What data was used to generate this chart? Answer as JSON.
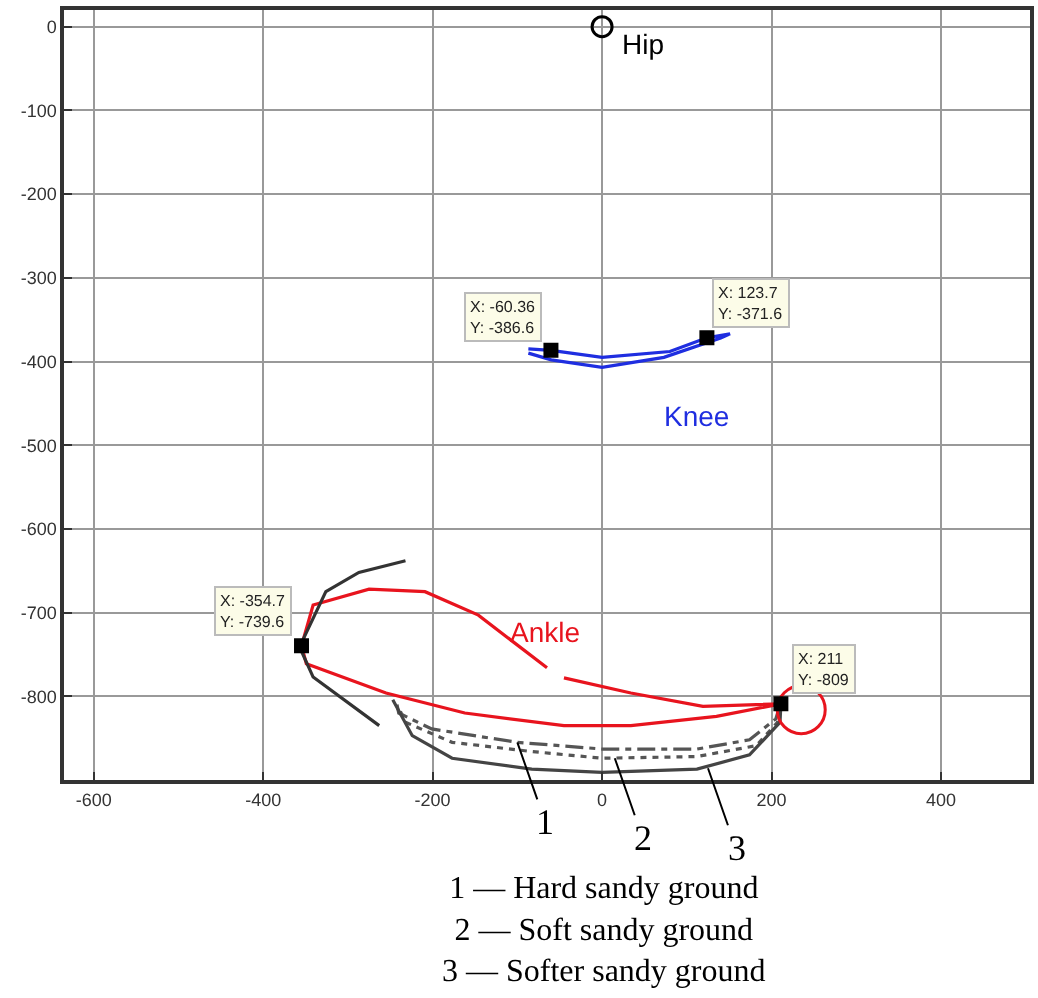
{
  "chart_data": {
    "type": "line",
    "xlim": [
      -635,
      505
    ],
    "ylim": [
      -900,
      20
    ],
    "xticks": [
      -600,
      -400,
      -200,
      0,
      200,
      400
    ],
    "yticks": [
      0,
      -100,
      -200,
      -300,
      -400,
      -500,
      -600,
      -700,
      -800
    ],
    "grid": true,
    "series": [
      {
        "type": "scatter",
        "name": "Hip",
        "color": "#000000",
        "marker": "circle",
        "x": [
          0
        ],
        "values": [
          0
        ]
      },
      {
        "name": "Knee",
        "color": "#1f2ee0",
        "line_style": "solid",
        "marker": "none",
        "x": [
          -87,
          -60.36,
          0,
          80,
          123.7,
          151,
          140,
          73,
          0,
          -60,
          -87
        ],
        "values": [
          -385,
          -386.6,
          -395,
          -388,
          -371.6,
          -367,
          -372,
          -395,
          -407,
          -398,
          -390
        ]
      },
      {
        "name": "Ankle",
        "color": "#e8141e",
        "line_style": "solid",
        "marker": "none",
        "x": [
          -45,
          34,
          119,
          211,
          135,
          34,
          -45,
          -162,
          -255,
          -349,
          -354.7,
          -341,
          -275,
          -209,
          -146,
          -65
        ],
        "values": [
          -778,
          -796,
          -812,
          -809,
          -824,
          -835,
          -835,
          -820,
          -796,
          -761,
          -739.6,
          -691,
          -672,
          -675,
          -703,
          -766
        ]
      },
      {
        "color": "#333333",
        "line_style": "solid",
        "marker": "none",
        "x": [
          -263,
          -341,
          -357,
          -326,
          -287,
          -232
        ],
        "values": [
          -835,
          -777,
          -741,
          -675,
          -652,
          -638
        ]
      },
      {
        "color": "#555555",
        "line_style": "dashdot",
        "marker": "none",
        "x": [
          -242,
          -240,
          -201,
          -100,
          0,
          112,
          174,
          205,
          209
        ],
        "values": [
          -810,
          -820,
          -839,
          -855,
          -863,
          -863,
          -852,
          -827,
          -814
        ]
      },
      {
        "color": "#555555",
        "line_style": "dotted",
        "marker": "none",
        "x": [
          -238,
          -232,
          -177,
          -83,
          0,
          112,
          182,
          207,
          209
        ],
        "values": [
          -818,
          -831,
          -855,
          -866,
          -874,
          -872,
          -859,
          -831,
          -819
        ]
      },
      {
        "color": "#444444",
        "line_style": "solid",
        "marker": "none",
        "x": [
          -247,
          -224,
          -177,
          -83,
          0,
          112,
          174,
          210,
          211
        ],
        "values": [
          -804,
          -847,
          -874,
          -887,
          -891,
          -887,
          -870,
          -831,
          -809
        ]
      },
      {
        "type": "scatter",
        "color": "#e8141e",
        "marker": "open_circle",
        "x": [
          235
        ],
        "values": [
          -816
        ]
      },
      {
        "type": "scatter",
        "color": "#000000",
        "marker": "square",
        "x": [
          -60.36,
          123.7,
          -354.7,
          211
        ],
        "values": [
          -386.6,
          -371.6,
          -739.6,
          -809
        ]
      }
    ],
    "annotations": [
      {
        "text": "X: -60.36\nY: -386.6",
        "x": -60.36,
        "y": -386.6
      },
      {
        "text": "X: 123.7\nY: -371.6",
        "x": 123.7,
        "y": -371.6
      },
      {
        "text": "X: -354.7\nY: -739.6",
        "x": -354.7,
        "y": -739.6
      },
      {
        "text": "X: 211\nY: -809",
        "x": 211,
        "y": -809
      },
      {
        "text": "1",
        "x": -100,
        "y": -855
      },
      {
        "text": "2",
        "x": 15,
        "y": -874
      },
      {
        "text": "3",
        "x": 125,
        "y": -886
      },
      "1 — Hard sandy ground\n2 — Soft sandy ground\n3 — Softer sandy ground"
    ]
  }
}
